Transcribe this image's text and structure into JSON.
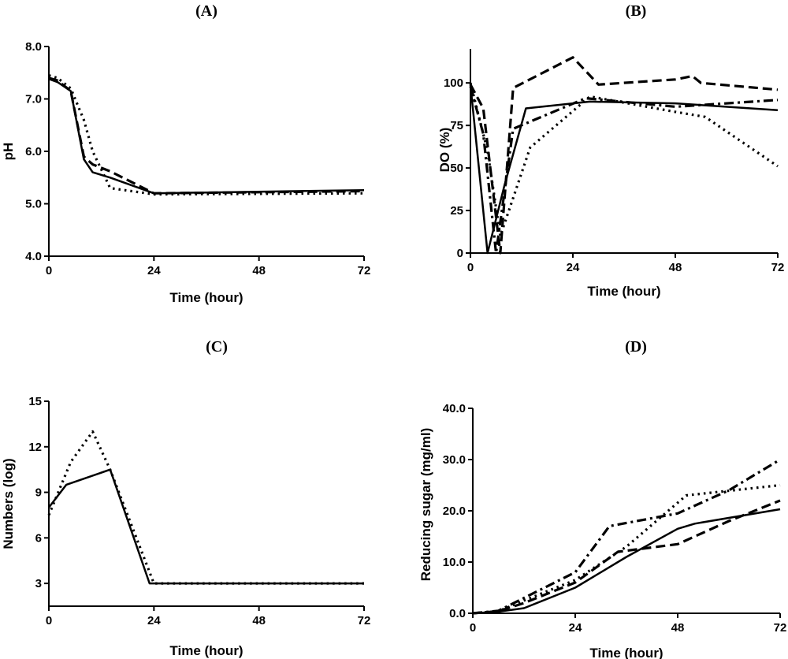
{
  "chart_data": [
    {
      "panel": "A",
      "title": "(A)",
      "type": "line",
      "xlabel": "Time (hour)",
      "ylabel": "pH",
      "xlim": [
        0,
        72
      ],
      "ylim": [
        4.0,
        8.0
      ],
      "xticks": [
        0,
        24,
        48,
        72
      ],
      "xtick_labels": [
        "0",
        "24",
        "48",
        "72"
      ],
      "yticks": [
        4.0,
        5.0,
        6.0,
        7.0,
        8.0
      ],
      "ytick_labels": [
        "4.0",
        "5.0",
        "6.0",
        "7.0",
        "8.0"
      ],
      "grid": false,
      "series": [
        {
          "style": "solid",
          "x": [
            0,
            2,
            5,
            8,
            10,
            14,
            24,
            72
          ],
          "y": [
            7.38,
            7.32,
            7.15,
            5.85,
            5.6,
            5.5,
            5.2,
            5.26
          ]
        },
        {
          "style": "dashed",
          "x": [
            0,
            2,
            5,
            8,
            10,
            14,
            24,
            72
          ],
          "y": [
            7.4,
            7.35,
            7.15,
            5.9,
            5.75,
            5.62,
            5.2,
            5.24
          ]
        },
        {
          "style": "dotted",
          "x": [
            0,
            2,
            5,
            8,
            10,
            14,
            24,
            72
          ],
          "y": [
            7.45,
            7.4,
            7.2,
            6.6,
            6.0,
            5.3,
            5.18,
            5.2
          ]
        }
      ]
    },
    {
      "panel": "B",
      "title": "(B)",
      "type": "line",
      "xlabel": "Time (hour)",
      "ylabel": "DO (%)",
      "xlim": [
        0,
        72
      ],
      "ylim": [
        0,
        120
      ],
      "xticks": [
        0,
        24,
        48,
        72
      ],
      "xtick_labels": [
        "0",
        "24",
        "48",
        "72"
      ],
      "yticks": [
        0,
        25,
        50,
        75,
        100
      ],
      "ytick_labels": [
        "0",
        "25",
        "50",
        "75",
        "100"
      ],
      "grid": false,
      "series": [
        {
          "style": "solid",
          "x": [
            0,
            4,
            8,
            13,
            28,
            48,
            72
          ],
          "y": [
            99,
            0,
            40,
            85,
            89,
            88,
            84
          ]
        },
        {
          "style": "dashed",
          "x": [
            0,
            3,
            7,
            10,
            24,
            30,
            48,
            52,
            54,
            72
          ],
          "y": [
            99,
            85,
            0,
            97,
            115,
            99,
            102,
            104,
            100,
            96
          ]
        },
        {
          "style": "dashdot",
          "x": [
            0,
            3,
            6,
            10,
            27,
            48,
            72
          ],
          "y": [
            98,
            70,
            0,
            73,
            91,
            86,
            90
          ]
        },
        {
          "style": "dotted",
          "x": [
            0,
            4,
            7,
            14,
            28,
            48,
            55,
            72
          ],
          "y": [
            100,
            60,
            10,
            62,
            92,
            83,
            80,
            51
          ]
        }
      ]
    },
    {
      "panel": "C",
      "title": "(C)",
      "type": "line",
      "xlabel": "Time (hour)",
      "ylabel": "Numbers (log)",
      "xlim": [
        0,
        72
      ],
      "ylim": [
        1.5,
        15
      ],
      "xticks": [
        0,
        24,
        48,
        72
      ],
      "xtick_labels": [
        "0",
        "24",
        "48",
        "72"
      ],
      "yticks": [
        3,
        6,
        9,
        12,
        15
      ],
      "ytick_labels": [
        "3",
        "6",
        "9",
        "12",
        "15"
      ],
      "grid": false,
      "series": [
        {
          "style": "solid",
          "x": [
            0,
            4,
            14,
            23,
            72
          ],
          "y": [
            8.0,
            9.5,
            10.5,
            3.0,
            3.0
          ]
        },
        {
          "style": "dotted",
          "x": [
            0,
            5,
            10,
            14,
            24,
            72
          ],
          "y": [
            7.5,
            11.0,
            13.0,
            10.5,
            3.0,
            3.0
          ]
        }
      ]
    },
    {
      "panel": "D",
      "title": "(D)",
      "type": "line",
      "xlabel": "Time (hour)",
      "ylabel": "Reducing sugar (mg/ml)",
      "xlim": [
        0,
        72
      ],
      "ylim": [
        0,
        40
      ],
      "xticks": [
        0,
        24,
        48,
        72
      ],
      "xtick_labels": [
        "0",
        "24",
        "48",
        "72"
      ],
      "yticks": [
        0,
        10,
        20,
        30,
        40
      ],
      "ytick_labels": [
        "0.0",
        "10.0",
        "20.0",
        "30.0",
        "40.0"
      ],
      "grid": false,
      "series": [
        {
          "style": "solid",
          "x": [
            0,
            6,
            12,
            24,
            36,
            48,
            52,
            72
          ],
          "y": [
            0,
            0.3,
            1.0,
            5.0,
            11.0,
            16.5,
            17.5,
            20.3
          ]
        },
        {
          "style": "dashed",
          "x": [
            0,
            6,
            12,
            24,
            34,
            48,
            60,
            72
          ],
          "y": [
            0,
            0.4,
            2.0,
            6.0,
            12.0,
            13.5,
            18.0,
            22.0
          ]
        },
        {
          "style": "dashdot",
          "x": [
            0,
            6,
            12,
            24,
            32,
            48,
            60,
            72
          ],
          "y": [
            0,
            0.5,
            3.0,
            8.0,
            17.0,
            19.5,
            24.0,
            30.0
          ]
        },
        {
          "style": "dotted",
          "x": [
            0,
            6,
            12,
            24,
            36,
            50,
            72
          ],
          "y": [
            0,
            0.4,
            2.5,
            6.5,
            13.0,
            23.0,
            25.0
          ]
        }
      ]
    }
  ]
}
